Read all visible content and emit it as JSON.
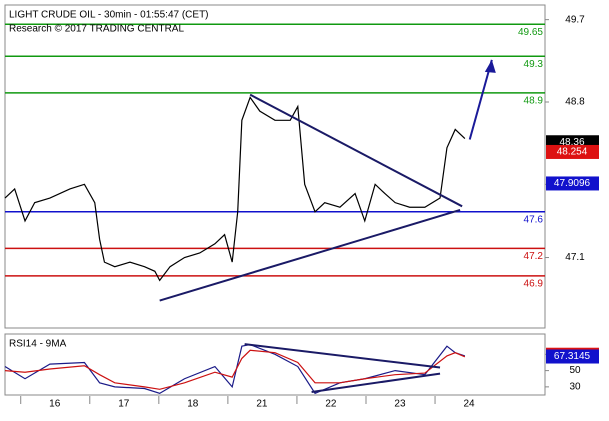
{
  "chart_data": [
    {
      "type": "line",
      "title": "LIGHT CRUDE OIL - 30min - 01:55:47 (CET)",
      "subtitle": "Research © 2017 TRADING CENTRAL",
      "x": [
        -0.72,
        -0.58,
        -0.43,
        -0.29,
        -0.07,
        0.22,
        0.43,
        0.58,
        0.65,
        0.72,
        0.87,
        1.09,
        1.3,
        1.45,
        1.52,
        1.67,
        1.88,
        2.1,
        2.32,
        2.46,
        2.57,
        2.65,
        2.71,
        2.83,
        2.97,
        3.19,
        3.41,
        3.52,
        3.62,
        3.77,
        3.91,
        4.13,
        4.35,
        4.49,
        4.64,
        4.78,
        4.93,
        5.14,
        5.36,
        5.58,
        5.68,
        5.8,
        5.94
      ],
      "series": [
        {
          "name": "Close",
          "color": "#000000",
          "values": [
            47.75,
            47.85,
            47.5,
            47.7,
            47.75,
            47.85,
            47.9,
            47.7,
            47.3,
            47.05,
            47.0,
            47.05,
            47.0,
            46.95,
            46.85,
            47.0,
            47.1,
            47.15,
            47.25,
            47.35,
            47.05,
            47.6,
            48.6,
            48.85,
            48.7,
            48.6,
            48.6,
            48.75,
            47.9,
            47.6,
            47.7,
            47.65,
            47.8,
            47.5,
            47.9,
            47.8,
            47.7,
            47.65,
            47.65,
            47.75,
            48.3,
            48.5,
            48.4
          ]
        }
      ],
      "levels": [
        {
          "value": 49.65,
          "color": "#119911"
        },
        {
          "value": 49.3,
          "color": "#119911"
        },
        {
          "value": 48.9,
          "color": "#119911"
        },
        {
          "value": 47.6,
          "color": "#1111cc"
        },
        {
          "value": 47.2,
          "color": "#cc1111"
        },
        {
          "value": 46.9,
          "color": "#cc1111"
        }
      ],
      "tags": [
        {
          "value": 48.36,
          "color": "#000000"
        },
        {
          "value": 48.254,
          "color": "#dd1111"
        },
        {
          "value": 47.9096,
          "color": "#1111cc"
        }
      ],
      "trendlines": [
        {
          "x": [
            2.83,
            5.9
          ],
          "y": [
            48.88,
            47.66
          ],
          "color": "#1a1a66"
        },
        {
          "x": [
            1.52,
            5.87
          ],
          "y": [
            46.63,
            47.62
          ],
          "color": "#1a1a66"
        },
        {
          "x": [
            6.01,
            6.33
          ],
          "y": [
            48.39,
            49.26
          ],
          "color": "#1a1a99"
        }
      ],
      "xlim": [
        -0.72,
        7.1
      ],
      "ylim": [
        46.33,
        49.86
      ],
      "xticks": [
        {
          "value": 0,
          "label": "16"
        },
        {
          "value": 1,
          "label": "17"
        },
        {
          "value": 2,
          "label": "18"
        },
        {
          "value": 3,
          "label": "21"
        },
        {
          "value": 4,
          "label": "22"
        },
        {
          "value": 5,
          "label": "23"
        },
        {
          "value": 6,
          "label": "24"
        }
      ],
      "yticks": [
        49.7,
        48.8,
        47.9,
        47.1
      ]
    },
    {
      "type": "line",
      "title": "RSI14 - 9MA",
      "x": [
        -0.72,
        -0.43,
        -0.07,
        0.43,
        0.65,
        0.87,
        1.3,
        1.52,
        1.88,
        2.32,
        2.57,
        2.71,
        2.83,
        3.19,
        3.52,
        3.77,
        4.13,
        4.49,
        4.93,
        5.36,
        5.68,
        5.8,
        5.94
      ],
      "series": [
        {
          "name": "RSI14",
          "color": "#1a1a88",
          "values": [
            55,
            40,
            58,
            60,
            35,
            30,
            28,
            22,
            40,
            55,
            30,
            80,
            82,
            70,
            55,
            22,
            35,
            40,
            50,
            45,
            80,
            72,
            68
          ]
        },
        {
          "name": "9MA",
          "color": "#cc1111",
          "values": [
            50,
            48,
            52,
            56,
            45,
            35,
            30,
            27,
            35,
            48,
            42,
            65,
            75,
            72,
            60,
            35,
            35,
            40,
            45,
            47,
            68,
            72,
            67
          ]
        }
      ],
      "tags": [
        {
          "value": 69.5212,
          "color": "#dd1111"
        },
        {
          "value": 67.3145,
          "color": "#1111cc"
        }
      ],
      "trendlines": [
        {
          "x": [
            2.75,
            5.58
          ],
          "y": [
            82.5,
            53.75
          ],
          "color": "#1a1a66"
        },
        {
          "x": [
            3.72,
            5.58
          ],
          "y": [
            23.75,
            46.25
          ],
          "color": "#1a1a66"
        }
      ],
      "xlim": [
        -0.72,
        7.1
      ],
      "ylim": [
        20,
        95
      ],
      "yticks": [
        70,
        50,
        30
      ]
    }
  ]
}
